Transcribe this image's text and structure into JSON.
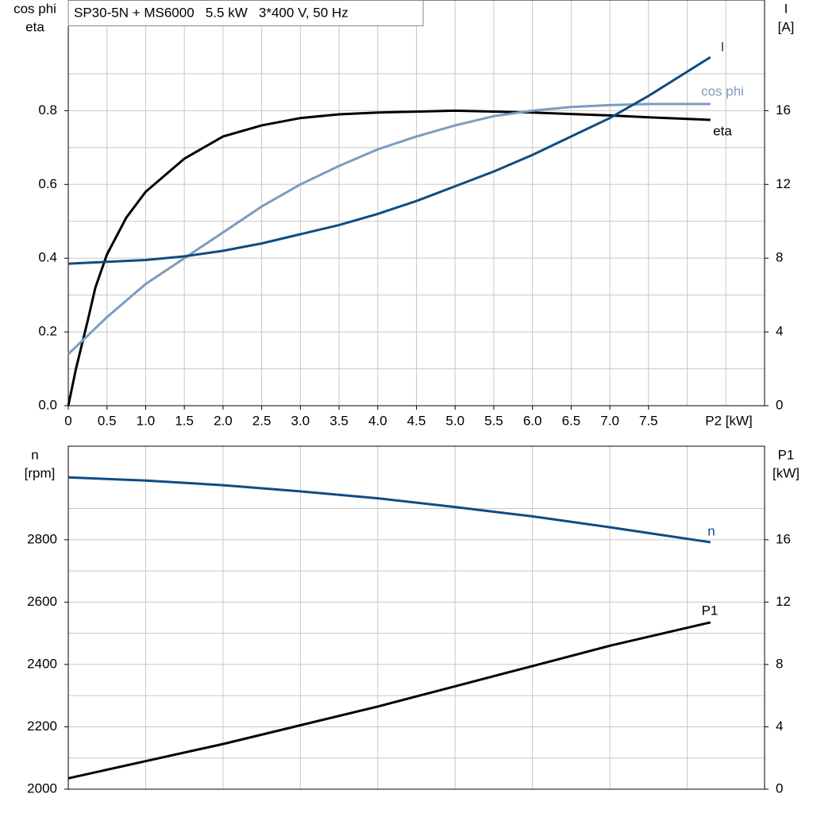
{
  "chart_data": [
    {
      "type": "line",
      "title": "SP30-5N + MS6000   5.5 kW   3*400 V, 50 Hz",
      "ylabel": [
        "cos phi",
        "eta"
      ],
      "y2label": [
        "I",
        "[A]"
      ],
      "xlabel": "P2 [kW]",
      "xlim": [
        0,
        9
      ],
      "ylim": [
        0,
        1.1
      ],
      "y2lim": [
        0,
        22
      ],
      "xticks": [
        0,
        0.5,
        {
          "value": 1,
          "label": "1.0"
        },
        1.5,
        {
          "value": 2,
          "label": "2.0"
        },
        2.5,
        {
          "value": 3,
          "label": "3.0"
        },
        3.5,
        {
          "value": 4,
          "label": "4.0"
        },
        4.5,
        {
          "value": 5,
          "label": "5.0"
        },
        5.5,
        {
          "value": 6,
          "label": "6.0"
        },
        6.5,
        {
          "value": 7,
          "label": "7.0"
        },
        7.5
      ],
      "xgrid": [
        0.5,
        1,
        1.5,
        2,
        2.5,
        3,
        3.5,
        4,
        4.5,
        5,
        5.5,
        6,
        6.5,
        7,
        7.5,
        8,
        8.5
      ],
      "yticks": [
        {
          "value": 0,
          "label": "0.0"
        },
        0.2,
        0.4,
        0.6,
        0.8
      ],
      "y2ticks": [
        0,
        4,
        8,
        12,
        16
      ],
      "grid": true,
      "series": [
        {
          "name": "eta",
          "color": "#000000",
          "x": [
            0,
            0.1,
            0.25,
            0.35,
            0.5,
            0.75,
            1,
            1.5,
            2,
            2.5,
            3,
            3.5,
            4,
            5,
            6,
            7,
            7.5,
            8.3
          ],
          "values": [
            0,
            0.1,
            0.23,
            0.32,
            0.41,
            0.51,
            0.58,
            0.67,
            0.73,
            0.76,
            0.78,
            0.79,
            0.795,
            0.8,
            0.795,
            0.787,
            0.782,
            0.775
          ]
        },
        {
          "name": "cos phi",
          "color": "#7a9cc0",
          "x": [
            0,
            0.5,
            1,
            1.5,
            2,
            2.5,
            3,
            3.5,
            4,
            4.5,
            5,
            5.5,
            6,
            6.5,
            7,
            7.5,
            8.3
          ],
          "values": [
            0.14,
            0.24,
            0.33,
            0.4,
            0.47,
            0.54,
            0.6,
            0.65,
            0.695,
            0.73,
            0.76,
            0.785,
            0.8,
            0.81,
            0.815,
            0.818,
            0.818
          ]
        },
        {
          "name": "I",
          "color": "#0f4c81",
          "axis": "y2",
          "x": [
            0,
            1,
            1.5,
            2,
            2.5,
            3,
            3.5,
            4,
            4.5,
            5,
            5.5,
            6,
            6.5,
            7,
            7.5,
            8.3
          ],
          "values": [
            7.7,
            7.9,
            8.1,
            8.4,
            8.8,
            9.3,
            9.8,
            10.4,
            11.1,
            11.9,
            12.7,
            13.6,
            14.6,
            15.6,
            16.8,
            18.9
          ]
        }
      ]
    },
    {
      "type": "line",
      "ylabel": [
        "n",
        "[rpm]"
      ],
      "y2label": [
        "P1",
        "[kW]"
      ],
      "xlim": [
        0,
        9
      ],
      "ylim": [
        2000,
        3100
      ],
      "y2lim": [
        0,
        22
      ],
      "xgrid": [
        1,
        2,
        3,
        4,
        5,
        6,
        7,
        8
      ],
      "yticks": [
        2000,
        2200,
        2400,
        2600,
        2800
      ],
      "y2ticks": [
        0,
        4,
        8,
        12,
        16
      ],
      "grid": true,
      "series": [
        {
          "name": "n",
          "color": "#0f4c81",
          "x": [
            0,
            1,
            2,
            3,
            4,
            5,
            6,
            7,
            8.3
          ],
          "values": [
            3000,
            2990,
            2975,
            2955,
            2933,
            2905,
            2875,
            2840,
            2792
          ]
        },
        {
          "name": "P1",
          "color": "#000000",
          "axis": "y2",
          "x": [
            0,
            1,
            2,
            3,
            4,
            5,
            6,
            7,
            8.3
          ],
          "values": [
            0.7,
            1.8,
            2.9,
            4.1,
            5.3,
            6.6,
            7.9,
            9.2,
            10.7
          ]
        }
      ]
    }
  ]
}
